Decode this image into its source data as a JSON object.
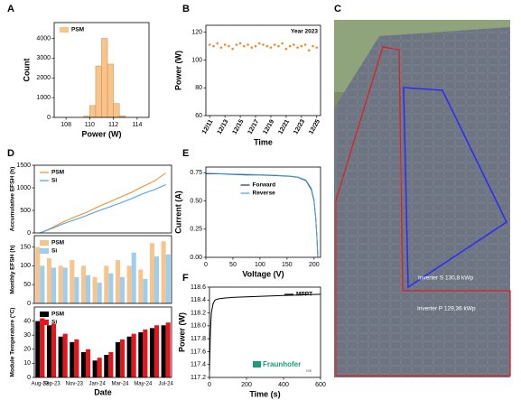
{
  "panel_labels": [
    "A",
    "B",
    "C",
    "D",
    "E",
    "F"
  ],
  "photo": {
    "labels": [
      "Inverter S 130,8 kWp",
      "Inverter P 129,36 kWp"
    ]
  },
  "chart_data": [
    {
      "type": "histogram",
      "xlabel": "Power (W)",
      "ylabel": "Count",
      "bins": [
        109.5,
        110,
        110.5,
        111,
        111.5,
        112,
        112.5,
        113
      ],
      "counts": [
        60,
        600,
        2600,
        4000,
        2700,
        700,
        80
      ],
      "series": [
        {
          "name": "PSM",
          "color": "#f9c48c"
        }
      ],
      "xlim": [
        107,
        115
      ],
      "xticks": [
        108,
        110,
        112,
        114
      ],
      "ylim": [
        0,
        4800
      ],
      "yticks": [
        0,
        1000,
        2000,
        3000,
        4000
      ],
      "legend": "upper left"
    },
    {
      "type": "scatter",
      "xlabel": "Time",
      "ylabel": "Power (W)",
      "annotations": [
        "Year 2023"
      ],
      "x": [
        11,
        11.5,
        12,
        12.5,
        13,
        13.5,
        14,
        14.5,
        15,
        15.5,
        16,
        16.5,
        17,
        17.5,
        18,
        18.5,
        19,
        19.5,
        20,
        20.5,
        21,
        21.5,
        22,
        22.5,
        23,
        23.5,
        24,
        24.5,
        25
      ],
      "series": [
        {
          "name": "PSM",
          "color": "#f28c28",
          "values": [
            111,
            110,
            112,
            109,
            111,
            110,
            108,
            111,
            112,
            110,
            111,
            109,
            110,
            112,
            111,
            110,
            109,
            111,
            110,
            112,
            108,
            110,
            111,
            109,
            110,
            111,
            107,
            110,
            109
          ]
        }
      ],
      "xlim": [
        10.5,
        25.5
      ],
      "xticks": [
        {
          "value": 11,
          "label": "12/11"
        },
        {
          "value": 13,
          "label": "12/13"
        },
        {
          "value": 15,
          "label": "12/15"
        },
        {
          "value": 17,
          "label": "12/17"
        },
        {
          "value": 19,
          "label": "12/19"
        },
        {
          "value": 21,
          "label": "12/21"
        },
        {
          "value": 23,
          "label": "12/23"
        },
        {
          "value": 25,
          "label": "12/25"
        }
      ],
      "ylim": [
        60,
        125
      ],
      "yticks": [
        60,
        80,
        100,
        120
      ]
    },
    {
      "type": "line",
      "ylabel": "Accumulative EFSH (h)",
      "series": [
        {
          "name": "PSM",
          "color": "#f28c28",
          "values": [
            0,
            110,
            240,
            350,
            450,
            570,
            680,
            790,
            900,
            1030,
            1150,
            1330
          ]
        },
        {
          "name": "Si",
          "color": "#4aa3df",
          "values": [
            0,
            95,
            200,
            290,
            380,
            480,
            570,
            660,
            760,
            870,
            960,
            1070
          ]
        }
      ],
      "ylim": [
        0,
        1500
      ],
      "yticks": [
        0,
        500,
        1000,
        1500
      ],
      "legend": "upper left"
    },
    {
      "type": "bar",
      "ylabel": "Monthly EFSH (h)",
      "series": [
        {
          "name": "PSM",
          "color": "#f9c48c",
          "values": [
            150,
            120,
            100,
            115,
            100,
            70,
            100,
            115,
            100,
            90,
            160,
            165
          ]
        },
        {
          "name": "Si",
          "color": "#9ccfef",
          "values": [
            100,
            95,
            95,
            70,
            75,
            55,
            80,
            70,
            135,
            65,
            125,
            130
          ]
        }
      ],
      "ylim": [
        0,
        180
      ],
      "yticks": [
        0,
        50,
        100,
        150
      ],
      "legend": "upper left"
    },
    {
      "type": "bar",
      "xlabel": "Date",
      "ylabel": "Module Temperature (°C)",
      "categories": [
        "Aug-23",
        "Sep-23",
        null,
        "Nov-23",
        null,
        "Jan-24",
        null,
        "Mar-24",
        null,
        "May-24",
        null,
        "Jul-24"
      ],
      "series": [
        {
          "name": "PSM",
          "color": "#000000",
          "values": [
            40,
            37,
            29,
            25,
            18,
            12,
            16,
            25,
            29,
            32,
            35,
            37
          ]
        },
        {
          "name": "Si",
          "color": "#e8141c",
          "values": [
            42,
            38,
            31,
            27,
            20,
            14,
            18,
            27,
            31,
            34,
            37,
            39
          ]
        }
      ],
      "ylim": [
        0,
        50
      ],
      "yticks": [
        0,
        10,
        20,
        30,
        40
      ],
      "legend": "upper left"
    },
    {
      "type": "line",
      "xlabel": "Voltage (V)",
      "ylabel": "Current (A)",
      "x": [
        0,
        25,
        50,
        75,
        100,
        125,
        150,
        170,
        185,
        195,
        200,
        203,
        205,
        207
      ],
      "series": [
        {
          "name": "Forward",
          "color": "#1f2f5a",
          "values": [
            0.74,
            0.74,
            0.735,
            0.73,
            0.73,
            0.725,
            0.72,
            0.71,
            0.68,
            0.6,
            0.5,
            0.35,
            0.2,
            0
          ]
        },
        {
          "name": "Reverse",
          "color": "#4aa3df",
          "values": [
            0.745,
            0.742,
            0.738,
            0.735,
            0.732,
            0.728,
            0.722,
            0.712,
            0.685,
            0.61,
            0.51,
            0.36,
            0.2,
            0
          ]
        }
      ],
      "xlim": [
        0,
        212
      ],
      "xticks": [
        0,
        50,
        100,
        150,
        200
      ],
      "ylim": [
        0,
        0.8
      ],
      "yticks": [
        {
          "value": 0,
          "label": "0.00"
        },
        0.25,
        {
          "value": 0.5,
          "label": "0.50"
        },
        0.75
      ],
      "legend": "upper center"
    },
    {
      "type": "line",
      "xlabel": "Time (s)",
      "ylabel": "Power (W)",
      "annotations": [
        "Fraunhofer",
        "ISE"
      ],
      "x": [
        0,
        5,
        10,
        20,
        30,
        50,
        80,
        120,
        200,
        300,
        400,
        500,
        600
      ],
      "series": [
        {
          "name": "MPPT",
          "color": "#000000",
          "values": [
            117.3,
            117.9,
            118.2,
            118.35,
            118.4,
            118.42,
            118.43,
            118.44,
            118.45,
            118.46,
            118.47,
            118.48,
            118.49
          ]
        }
      ],
      "xlim": [
        0,
        600
      ],
      "xticks": [
        0,
        200,
        400,
        600
      ],
      "ylim": [
        117.2,
        118.6
      ],
      "yticks": [
        117.2,
        117.4,
        117.6,
        117.8,
        {
          "value": 118,
          "label": "118.0"
        },
        118.2,
        118.4,
        118.6
      ],
      "legend": "upper right"
    }
  ]
}
